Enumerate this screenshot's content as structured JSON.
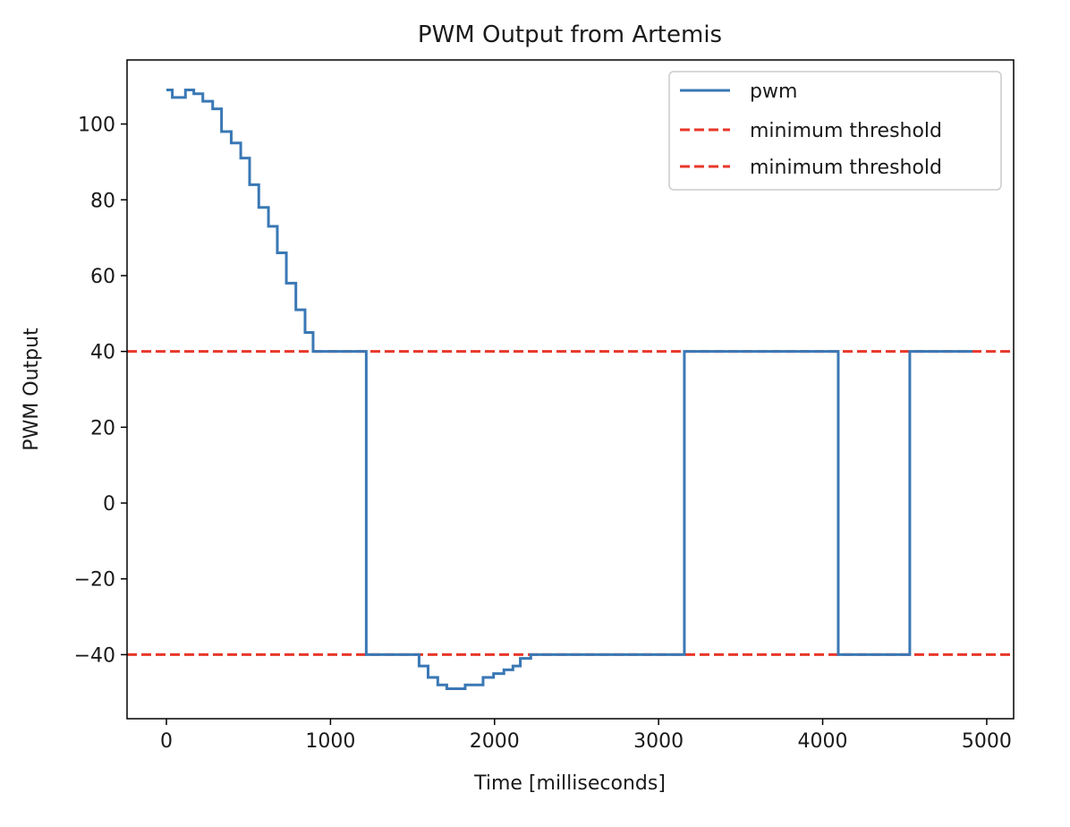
{
  "chart_data": {
    "type": "line",
    "title": "PWM Output from Artemis",
    "xlabel": "Time [milliseconds]",
    "ylabel": "PWM Output",
    "xlim": [
      -240,
      5164
    ],
    "ylim": [
      -56.9,
      116.9
    ],
    "xticks": [
      0,
      1000,
      2000,
      3000,
      4000,
      5000
    ],
    "xtick_labels": [
      "0",
      "1000",
      "2000",
      "3000",
      "4000",
      "5000"
    ],
    "yticks": [
      -40,
      -20,
      0,
      20,
      40,
      60,
      80,
      100
    ],
    "ytick_labels": [
      "−40",
      "−20",
      "0",
      "20",
      "40",
      "60",
      "80",
      "100"
    ],
    "grid": false,
    "legend_position": "top-right",
    "series": [
      {
        "name": "pwm",
        "style": "solid-step",
        "color": "#3a78b5",
        "points": [
          [
            0,
            109
          ],
          [
            36,
            107
          ],
          [
            116,
            109
          ],
          [
            167,
            108
          ],
          [
            222,
            106
          ],
          [
            282,
            104
          ],
          [
            336,
            98
          ],
          [
            395,
            95
          ],
          [
            453,
            91
          ],
          [
            507,
            84
          ],
          [
            563,
            78
          ],
          [
            622,
            73
          ],
          [
            676,
            66
          ],
          [
            731,
            58
          ],
          [
            789,
            51
          ],
          [
            845,
            45
          ],
          [
            894,
            40
          ],
          [
            1218,
            -40
          ],
          [
            1540,
            -43
          ],
          [
            1595,
            -46
          ],
          [
            1654,
            -48
          ],
          [
            1709,
            -49
          ],
          [
            1821,
            -48
          ],
          [
            1930,
            -46
          ],
          [
            1994,
            -45
          ],
          [
            2057,
            -44
          ],
          [
            2112,
            -43
          ],
          [
            2157,
            -41
          ],
          [
            2221,
            -40
          ],
          [
            3157,
            40
          ],
          [
            4095,
            -40
          ],
          [
            4531,
            40
          ],
          [
            4913,
            40
          ]
        ]
      },
      {
        "name": "minimum threshold",
        "style": "dashed-hline",
        "color": "#e8372a",
        "value": 40
      },
      {
        "name": "minimum threshold",
        "style": "dashed-hline",
        "color": "#e8372a",
        "value": -40
      }
    ]
  }
}
